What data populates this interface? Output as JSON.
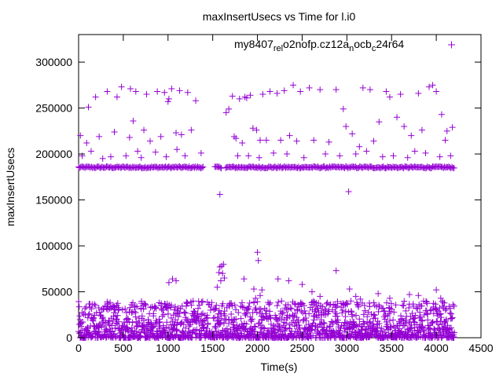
{
  "chart_data": {
    "type": "scatter",
    "title": "maxInsertUsecs vs Time for l.i0",
    "xlabel": "Time(s)",
    "ylabel": "maxInsertUsecs",
    "xlim": [
      0,
      4500
    ],
    "ylim": [
      0,
      330000
    ],
    "xticks": [
      0,
      500,
      1000,
      1500,
      2000,
      2500,
      3000,
      3500,
      4000,
      4500
    ],
    "yticks": [
      0,
      50000,
      100000,
      150000,
      200000,
      250000,
      300000
    ],
    "marker": "+",
    "grid": false,
    "legend_position": "top-right",
    "colors": {
      "series": "#9400d3",
      "axis": "#000000"
    },
    "series": [
      {
        "name": "my8407_rel_o2nofp.cz12a_ocbc_24r64",
        "name_parts": [
          {
            "text": "my8407",
            "sub": false
          },
          {
            "text": "rel",
            "sub": true
          },
          {
            "text": "o2nofp.cz12a",
            "sub": false
          },
          {
            "text": "n",
            "sub": true
          },
          {
            "text": "ocb",
            "sub": false
          },
          {
            "text": "c",
            "sub": true
          },
          {
            "text": "24r64",
            "sub": false
          }
        ],
        "x_range": [
          0,
          4200
        ],
        "baseline_band": {
          "y": 185500,
          "gaps": [
            [
              1400,
              1520
            ],
            [
              1600,
              1640
            ]
          ]
        },
        "points": [
          [
            20,
            220000
          ],
          [
            40,
            198000
          ],
          [
            90,
            212000
          ],
          [
            110,
            251000
          ],
          [
            140,
            203000
          ],
          [
            190,
            262000
          ],
          [
            230,
            219000
          ],
          [
            270,
            195000
          ],
          [
            320,
            268000
          ],
          [
            360,
            197000
          ],
          [
            400,
            224000
          ],
          [
            430,
            262000
          ],
          [
            480,
            273000
          ],
          [
            530,
            198000
          ],
          [
            570,
            218000
          ],
          [
            580,
            271000
          ],
          [
            610,
            236000
          ],
          [
            640,
            268000
          ],
          [
            660,
            203000
          ],
          [
            700,
            196000
          ],
          [
            730,
            226000
          ],
          [
            760,
            265000
          ],
          [
            800,
            214000
          ],
          [
            860,
            202000
          ],
          [
            880,
            268000
          ],
          [
            920,
            219000
          ],
          [
            960,
            267000
          ],
          [
            980,
            197000
          ],
          [
            1000,
            257000
          ],
          [
            1010,
            260000
          ],
          [
            1040,
            271000
          ],
          [
            1090,
            223000
          ],
          [
            1100,
            205000
          ],
          [
            1130,
            269000
          ],
          [
            1150,
            221000
          ],
          [
            1190,
            198000
          ],
          [
            1220,
            267000
          ],
          [
            1260,
            226000
          ],
          [
            1310,
            258000
          ],
          [
            1370,
            201000
          ],
          [
            1580,
            156000
          ],
          [
            1650,
            245000
          ],
          [
            1680,
            249000
          ],
          [
            1720,
            263000
          ],
          [
            1740,
            219000
          ],
          [
            1760,
            217000
          ],
          [
            1780,
            198000
          ],
          [
            1800,
            260000
          ],
          [
            1830,
            212000
          ],
          [
            1860,
            262000
          ],
          [
            1880,
            261000
          ],
          [
            1900,
            198000
          ],
          [
            1920,
            264000
          ],
          [
            1950,
            228000
          ],
          [
            1990,
            226000
          ],
          [
            2020,
            196000
          ],
          [
            2030,
            215000
          ],
          [
            2060,
            265000
          ],
          [
            2100,
            215000
          ],
          [
            2140,
            268000
          ],
          [
            2180,
            201000
          ],
          [
            2220,
            266000
          ],
          [
            2260,
            215000
          ],
          [
            2300,
            269000
          ],
          [
            2330,
            200000
          ],
          [
            2360,
            220000
          ],
          [
            2400,
            275000
          ],
          [
            2440,
            214000
          ],
          [
            2480,
            268000
          ],
          [
            2520,
            196000
          ],
          [
            2580,
            272000
          ],
          [
            2630,
            215000
          ],
          [
            2700,
            270000
          ],
          [
            2760,
            200000
          ],
          [
            2800,
            213000
          ],
          [
            2880,
            270000
          ],
          [
            2920,
            198000
          ],
          [
            2960,
            249000
          ],
          [
            2990,
            230000
          ],
          [
            3020,
            159000
          ],
          [
            3060,
            222000
          ],
          [
            3100,
            200000
          ],
          [
            3140,
            208000
          ],
          [
            3180,
            272000
          ],
          [
            3220,
            203000
          ],
          [
            3260,
            270000
          ],
          [
            3300,
            214000
          ],
          [
            3360,
            235000
          ],
          [
            3400,
            197000
          ],
          [
            3440,
            268000
          ],
          [
            3480,
            262000
          ],
          [
            3520,
            198000
          ],
          [
            3560,
            240000
          ],
          [
            3600,
            265000
          ],
          [
            3640,
            230000
          ],
          [
            3680,
            196000
          ],
          [
            3720,
            220000
          ],
          [
            3760,
            203000
          ],
          [
            3800,
            266000
          ],
          [
            3840,
            226000
          ],
          [
            3880,
            201000
          ],
          [
            3920,
            273000
          ],
          [
            3960,
            275000
          ],
          [
            4000,
            268000
          ],
          [
            4040,
            197000
          ],
          [
            4060,
            243000
          ],
          [
            4100,
            215000
          ],
          [
            4120,
            225000
          ],
          [
            4160,
            198000
          ],
          [
            4180,
            229000
          ],
          [
            600,
            28000
          ],
          [
            700,
            32000
          ],
          [
            900,
            38000
          ],
          [
            1010,
            60000
          ],
          [
            1050,
            64000
          ],
          [
            1090,
            62000
          ],
          [
            1550,
            55000
          ],
          [
            1570,
            71000
          ],
          [
            1580,
            77000
          ],
          [
            1590,
            62000
          ],
          [
            1600,
            78000
          ],
          [
            1610,
            70000
          ],
          [
            1620,
            80000
          ],
          [
            1630,
            65000
          ],
          [
            1850,
            64000
          ],
          [
            1880,
            30000
          ],
          [
            1960,
            53000
          ],
          [
            1980,
            43000
          ],
          [
            2000,
            93000
          ],
          [
            2010,
            84000
          ],
          [
            2030,
            46000
          ],
          [
            2050,
            52000
          ],
          [
            2230,
            64000
          ],
          [
            2270,
            40000
          ],
          [
            2350,
            62000
          ],
          [
            2500,
            58000
          ],
          [
            2610,
            50000
          ],
          [
            2700,
            45000
          ],
          [
            2880,
            73000
          ],
          [
            3030,
            53000
          ],
          [
            3100,
            45000
          ],
          [
            3150,
            42000
          ],
          [
            3350,
            48000
          ],
          [
            3480,
            43000
          ],
          [
            3700,
            47000
          ],
          [
            3800,
            46000
          ],
          [
            4000,
            52000
          ],
          [
            4050,
            43000
          ]
        ],
        "dense_lower_band": {
          "x_range": [
            0,
            4200
          ],
          "y_range": [
            0,
            40000
          ],
          "y_concentration": "below 15000"
        }
      }
    ]
  }
}
